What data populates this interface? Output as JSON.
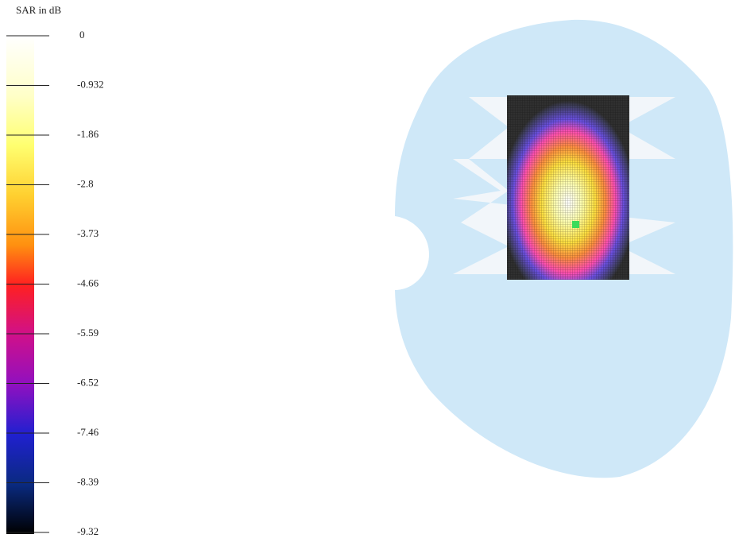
{
  "legend": {
    "title": "SAR in dB",
    "ticks": [
      "0",
      "-0.932",
      "-1.86",
      "-2.8",
      "-3.73",
      "-4.66",
      "-5.59",
      "-6.52",
      "-7.46",
      "-8.39",
      "-9.32"
    ]
  }
}
